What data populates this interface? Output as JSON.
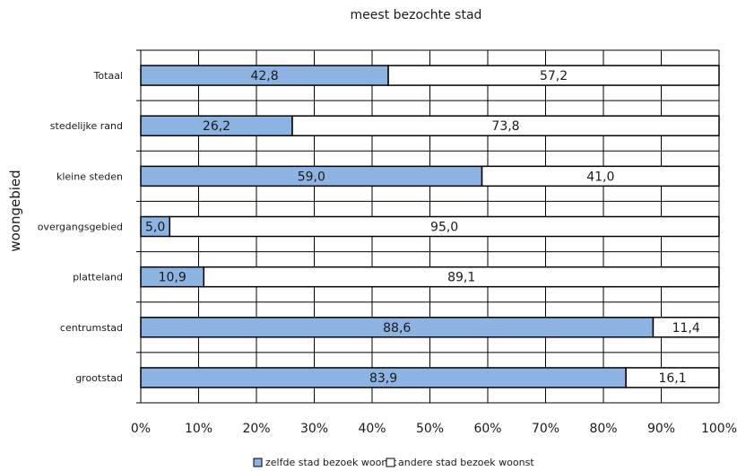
{
  "chart_data": {
    "type": "bar",
    "orientation": "horizontal",
    "stacked": true,
    "percent_stacked": true,
    "title": "meest bezochte stad",
    "xlabel": "",
    "ylabel": "woongebied",
    "categories": [
      "Totaal",
      "stedelijke rand",
      "kleine steden",
      "overgangsgebied",
      "platteland",
      "centrumstad",
      "grootstad"
    ],
    "series": [
      {
        "name": "zelfde stad bezoek woonst",
        "color": "#8db3e2",
        "values": [
          42.8,
          26.2,
          59.0,
          5.0,
          10.9,
          88.6,
          83.9
        ],
        "labels": [
          "42,8",
          "26,2",
          "59,0",
          "5,0",
          "10,9",
          "88,6",
          "83,9"
        ]
      },
      {
        "name": "andere stad bezoek woonst",
        "color": "#ffffff",
        "values": [
          57.2,
          73.8,
          41.0,
          95.0,
          89.1,
          11.4,
          16.1
        ],
        "labels": [
          "57,2",
          "73,8",
          "41,0",
          "95,0",
          "89,1",
          "11,4",
          "16,1"
        ]
      }
    ],
    "xlim": [
      0,
      100
    ],
    "xticks": [
      "0%",
      "10%",
      "20%",
      "30%",
      "40%",
      "50%",
      "60%",
      "70%",
      "80%",
      "90%",
      "100%"
    ],
    "grid": true,
    "legend_position": "bottom"
  }
}
